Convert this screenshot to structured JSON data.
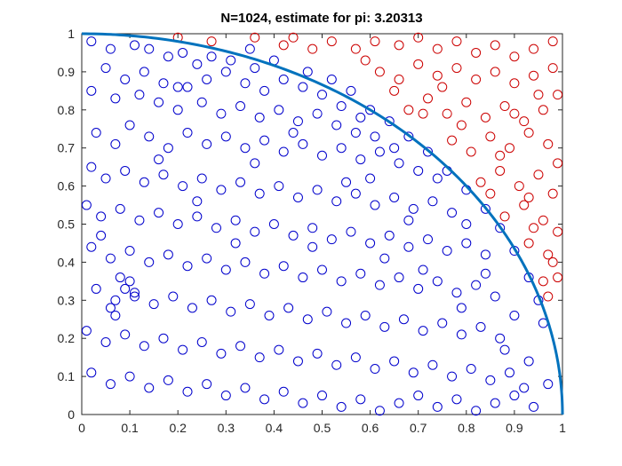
{
  "chart_data": {
    "type": "scatter",
    "title": "N=1024, estimate for pi: 3.20313",
    "xlabel": "",
    "ylabel": "",
    "xlim": [
      0,
      1
    ],
    "ylim": [
      0,
      1
    ],
    "grid": false,
    "x_ticks": [
      "0",
      "0.1",
      "0.2",
      "0.3",
      "0.4",
      "0.5",
      "0.6",
      "0.7",
      "0.8",
      "0.9",
      "1"
    ],
    "y_ticks": [
      "0",
      "0.1",
      "0.2",
      "0.3",
      "0.4",
      "0.5",
      "0.6",
      "0.7",
      "0.8",
      "0.9",
      "1"
    ],
    "n_points": 1024,
    "estimate": 3.20313,
    "series": [
      {
        "color": "#0000cc",
        "marker": "circle-open",
        "points": [
          [
            0.02,
            0.98
          ],
          [
            0.06,
            0.96
          ],
          [
            0.11,
            0.97
          ],
          [
            0.14,
            0.96
          ],
          [
            0.18,
            0.94
          ],
          [
            0.21,
            0.95
          ],
          [
            0.24,
            0.92
          ],
          [
            0.05,
            0.91
          ],
          [
            0.09,
            0.88
          ],
          [
            0.13,
            0.9
          ],
          [
            0.17,
            0.87
          ],
          [
            0.22,
            0.86
          ],
          [
            0.26,
            0.88
          ],
          [
            0.3,
            0.9
          ],
          [
            0.34,
            0.87
          ],
          [
            0.38,
            0.85
          ],
          [
            0.27,
            0.94
          ],
          [
            0.31,
            0.93
          ],
          [
            0.36,
            0.91
          ],
          [
            0.42,
            0.88
          ],
          [
            0.46,
            0.86
          ],
          [
            0.5,
            0.84
          ],
          [
            0.54,
            0.81
          ],
          [
            0.58,
            0.78
          ],
          [
            0.02,
            0.85
          ],
          [
            0.07,
            0.83
          ],
          [
            0.12,
            0.84
          ],
          [
            0.16,
            0.82
          ],
          [
            0.2,
            0.8
          ],
          [
            0.25,
            0.82
          ],
          [
            0.29,
            0.79
          ],
          [
            0.33,
            0.81
          ],
          [
            0.37,
            0.78
          ],
          [
            0.41,
            0.8
          ],
          [
            0.45,
            0.77
          ],
          [
            0.49,
            0.79
          ],
          [
            0.53,
            0.76
          ],
          [
            0.57,
            0.74
          ],
          [
            0.61,
            0.73
          ],
          [
            0.65,
            0.7
          ],
          [
            0.03,
            0.74
          ],
          [
            0.07,
            0.71
          ],
          [
            0.1,
            0.76
          ],
          [
            0.14,
            0.73
          ],
          [
            0.18,
            0.7
          ],
          [
            0.22,
            0.74
          ],
          [
            0.26,
            0.71
          ],
          [
            0.3,
            0.73
          ],
          [
            0.34,
            0.7
          ],
          [
            0.38,
            0.72
          ],
          [
            0.42,
            0.69
          ],
          [
            0.46,
            0.71
          ],
          [
            0.5,
            0.68
          ],
          [
            0.54,
            0.7
          ],
          [
            0.58,
            0.67
          ],
          [
            0.62,
            0.69
          ],
          [
            0.66,
            0.66
          ],
          [
            0.7,
            0.64
          ],
          [
            0.74,
            0.62
          ],
          [
            0.02,
            0.65
          ],
          [
            0.05,
            0.62
          ],
          [
            0.09,
            0.64
          ],
          [
            0.13,
            0.61
          ],
          [
            0.17,
            0.63
          ],
          [
            0.21,
            0.6
          ],
          [
            0.25,
            0.62
          ],
          [
            0.29,
            0.59
          ],
          [
            0.33,
            0.61
          ],
          [
            0.37,
            0.58
          ],
          [
            0.41,
            0.6
          ],
          [
            0.45,
            0.57
          ],
          [
            0.49,
            0.59
          ],
          [
            0.53,
            0.56
          ],
          [
            0.57,
            0.58
          ],
          [
            0.61,
            0.55
          ],
          [
            0.65,
            0.57
          ],
          [
            0.69,
            0.54
          ],
          [
            0.73,
            0.56
          ],
          [
            0.77,
            0.53
          ],
          [
            0.8,
            0.5
          ],
          [
            0.01,
            0.55
          ],
          [
            0.04,
            0.52
          ],
          [
            0.08,
            0.54
          ],
          [
            0.12,
            0.51
          ],
          [
            0.16,
            0.53
          ],
          [
            0.2,
            0.5
          ],
          [
            0.24,
            0.52
          ],
          [
            0.28,
            0.49
          ],
          [
            0.32,
            0.51
          ],
          [
            0.36,
            0.48
          ],
          [
            0.4,
            0.5
          ],
          [
            0.44,
            0.47
          ],
          [
            0.48,
            0.49
          ],
          [
            0.52,
            0.46
          ],
          [
            0.56,
            0.48
          ],
          [
            0.6,
            0.45
          ],
          [
            0.64,
            0.47
          ],
          [
            0.68,
            0.44
          ],
          [
            0.72,
            0.46
          ],
          [
            0.76,
            0.43
          ],
          [
            0.8,
            0.45
          ],
          [
            0.84,
            0.42
          ],
          [
            0.02,
            0.44
          ],
          [
            0.06,
            0.41
          ],
          [
            0.1,
            0.43
          ],
          [
            0.14,
            0.4
          ],
          [
            0.18,
            0.42
          ],
          [
            0.22,
            0.39
          ],
          [
            0.26,
            0.41
          ],
          [
            0.3,
            0.38
          ],
          [
            0.34,
            0.4
          ],
          [
            0.38,
            0.37
          ],
          [
            0.42,
            0.39
          ],
          [
            0.46,
            0.36
          ],
          [
            0.5,
            0.38
          ],
          [
            0.54,
            0.35
          ],
          [
            0.58,
            0.37
          ],
          [
            0.62,
            0.34
          ],
          [
            0.66,
            0.36
          ],
          [
            0.7,
            0.33
          ],
          [
            0.74,
            0.35
          ],
          [
            0.78,
            0.32
          ],
          [
            0.82,
            0.34
          ],
          [
            0.86,
            0.31
          ],
          [
            0.03,
            0.33
          ],
          [
            0.07,
            0.3
          ],
          [
            0.11,
            0.32
          ],
          [
            0.15,
            0.29
          ],
          [
            0.19,
            0.31
          ],
          [
            0.23,
            0.28
          ],
          [
            0.27,
            0.3
          ],
          [
            0.31,
            0.27
          ],
          [
            0.35,
            0.29
          ],
          [
            0.39,
            0.26
          ],
          [
            0.43,
            0.28
          ],
          [
            0.47,
            0.25
          ],
          [
            0.51,
            0.27
          ],
          [
            0.55,
            0.24
          ],
          [
            0.59,
            0.26
          ],
          [
            0.63,
            0.23
          ],
          [
            0.67,
            0.25
          ],
          [
            0.71,
            0.22
          ],
          [
            0.75,
            0.24
          ],
          [
            0.79,
            0.21
          ],
          [
            0.83,
            0.23
          ],
          [
            0.87,
            0.2
          ],
          [
            0.9,
            0.26
          ],
          [
            0.01,
            0.22
          ],
          [
            0.05,
            0.19
          ],
          [
            0.09,
            0.21
          ],
          [
            0.13,
            0.18
          ],
          [
            0.17,
            0.2
          ],
          [
            0.21,
            0.17
          ],
          [
            0.25,
            0.19
          ],
          [
            0.29,
            0.16
          ],
          [
            0.33,
            0.18
          ],
          [
            0.37,
            0.15
          ],
          [
            0.41,
            0.17
          ],
          [
            0.45,
            0.14
          ],
          [
            0.49,
            0.16
          ],
          [
            0.53,
            0.13
          ],
          [
            0.57,
            0.15
          ],
          [
            0.61,
            0.12
          ],
          [
            0.65,
            0.14
          ],
          [
            0.69,
            0.11
          ],
          [
            0.73,
            0.13
          ],
          [
            0.77,
            0.1
          ],
          [
            0.81,
            0.12
          ],
          [
            0.85,
            0.09
          ],
          [
            0.89,
            0.11
          ],
          [
            0.93,
            0.14
          ],
          [
            0.02,
            0.11
          ],
          [
            0.06,
            0.08
          ],
          [
            0.1,
            0.1
          ],
          [
            0.14,
            0.07
          ],
          [
            0.18,
            0.09
          ],
          [
            0.22,
            0.06
          ],
          [
            0.26,
            0.08
          ],
          [
            0.3,
            0.05
          ],
          [
            0.34,
            0.07
          ],
          [
            0.38,
            0.04
          ],
          [
            0.42,
            0.06
          ],
          [
            0.46,
            0.03
          ],
          [
            0.5,
            0.05
          ],
          [
            0.54,
            0.02
          ],
          [
            0.58,
            0.04
          ],
          [
            0.62,
            0.01
          ],
          [
            0.66,
            0.03
          ],
          [
            0.7,
            0.05
          ],
          [
            0.74,
            0.02
          ],
          [
            0.78,
            0.04
          ],
          [
            0.82,
            0.01
          ],
          [
            0.86,
            0.03
          ],
          [
            0.9,
            0.05
          ],
          [
            0.94,
            0.02
          ],
          [
            0.97,
            0.08
          ],
          [
            0.08,
            0.36
          ],
          [
            0.09,
            0.33
          ],
          [
            0.1,
            0.35
          ],
          [
            0.11,
            0.31
          ],
          [
            0.06,
            0.28
          ],
          [
            0.07,
            0.26
          ],
          [
            0.2,
            0.86
          ],
          [
            0.36,
            0.66
          ],
          [
            0.44,
            0.74
          ],
          [
            0.55,
            0.61
          ],
          [
            0.63,
            0.41
          ],
          [
            0.71,
            0.38
          ],
          [
            0.79,
            0.28
          ],
          [
            0.88,
            0.17
          ],
          [
            0.92,
            0.07
          ],
          [
            0.84,
            0.37
          ],
          [
            0.68,
            0.51
          ],
          [
            0.6,
            0.62
          ],
          [
            0.48,
            0.44
          ],
          [
            0.32,
            0.45
          ],
          [
            0.24,
            0.56
          ],
          [
            0.16,
            0.67
          ],
          [
            0.04,
            0.47
          ],
          [
            0.35,
            0.96
          ],
          [
            0.4,
            0.93
          ],
          [
            0.47,
            0.9
          ],
          [
            0.52,
            0.88
          ],
          [
            0.56,
            0.85
          ],
          [
            0.6,
            0.8
          ],
          [
            0.64,
            0.77
          ],
          [
            0.68,
            0.73
          ],
          [
            0.72,
            0.69
          ],
          [
            0.76,
            0.64
          ],
          [
            0.8,
            0.59
          ],
          [
            0.84,
            0.54
          ],
          [
            0.87,
            0.49
          ],
          [
            0.9,
            0.43
          ],
          [
            0.93,
            0.36
          ],
          [
            0.95,
            0.3
          ],
          [
            0.96,
            0.24
          ]
        ]
      },
      {
        "color": "#cc0000",
        "marker": "circle-open",
        "points": [
          [
            0.2,
            0.99
          ],
          [
            0.27,
            0.98
          ],
          [
            0.42,
            0.97
          ],
          [
            0.44,
            0.99
          ],
          [
            0.52,
            0.98
          ],
          [
            0.57,
            0.96
          ],
          [
            0.61,
            0.98
          ],
          [
            0.66,
            0.97
          ],
          [
            0.7,
            0.99
          ],
          [
            0.74,
            0.96
          ],
          [
            0.78,
            0.98
          ],
          [
            0.82,
            0.95
          ],
          [
            0.86,
            0.97
          ],
          [
            0.9,
            0.94
          ],
          [
            0.94,
            0.96
          ],
          [
            0.98,
            0.98
          ],
          [
            0.62,
            0.9
          ],
          [
            0.66,
            0.88
          ],
          [
            0.7,
            0.92
          ],
          [
            0.74,
            0.89
          ],
          [
            0.78,
            0.91
          ],
          [
            0.82,
            0.88
          ],
          [
            0.86,
            0.9
          ],
          [
            0.9,
            0.87
          ],
          [
            0.94,
            0.89
          ],
          [
            0.98,
            0.91
          ],
          [
            0.68,
            0.8
          ],
          [
            0.72,
            0.83
          ],
          [
            0.76,
            0.79
          ],
          [
            0.8,
            0.82
          ],
          [
            0.84,
            0.78
          ],
          [
            0.88,
            0.81
          ],
          [
            0.92,
            0.77
          ],
          [
            0.96,
            0.8
          ],
          [
            0.99,
            0.84
          ],
          [
            0.77,
            0.72
          ],
          [
            0.81,
            0.69
          ],
          [
            0.85,
            0.73
          ],
          [
            0.89,
            0.7
          ],
          [
            0.93,
            0.74
          ],
          [
            0.97,
            0.71
          ],
          [
            0.99,
            0.66
          ],
          [
            0.83,
            0.61
          ],
          [
            0.87,
            0.64
          ],
          [
            0.91,
            0.6
          ],
          [
            0.95,
            0.63
          ],
          [
            0.98,
            0.58
          ],
          [
            0.88,
            0.52
          ],
          [
            0.92,
            0.55
          ],
          [
            0.96,
            0.51
          ],
          [
            0.99,
            0.48
          ],
          [
            0.93,
            0.45
          ],
          [
            0.97,
            0.42
          ],
          [
            0.99,
            0.36
          ],
          [
            0.97,
            0.31
          ],
          [
            0.75,
            0.86
          ],
          [
            0.79,
            0.76
          ],
          [
            0.87,
            0.68
          ],
          [
            0.93,
            0.57
          ],
          [
            0.95,
            0.84
          ],
          [
            0.71,
            0.79
          ],
          [
            0.59,
            0.93
          ],
          [
            0.48,
            0.96
          ],
          [
            0.36,
            0.99
          ],
          [
            0.65,
            0.85
          ],
          [
            0.9,
            0.79
          ],
          [
            0.85,
            0.58
          ],
          [
            0.94,
            0.49
          ],
          [
            0.98,
            0.4
          ],
          [
            0.96,
            0.35
          ]
        ]
      }
    ],
    "curve": {
      "label_hidden": true,
      "color": "#0072bd",
      "equation": "x^2 + y^2 = 1"
    }
  }
}
